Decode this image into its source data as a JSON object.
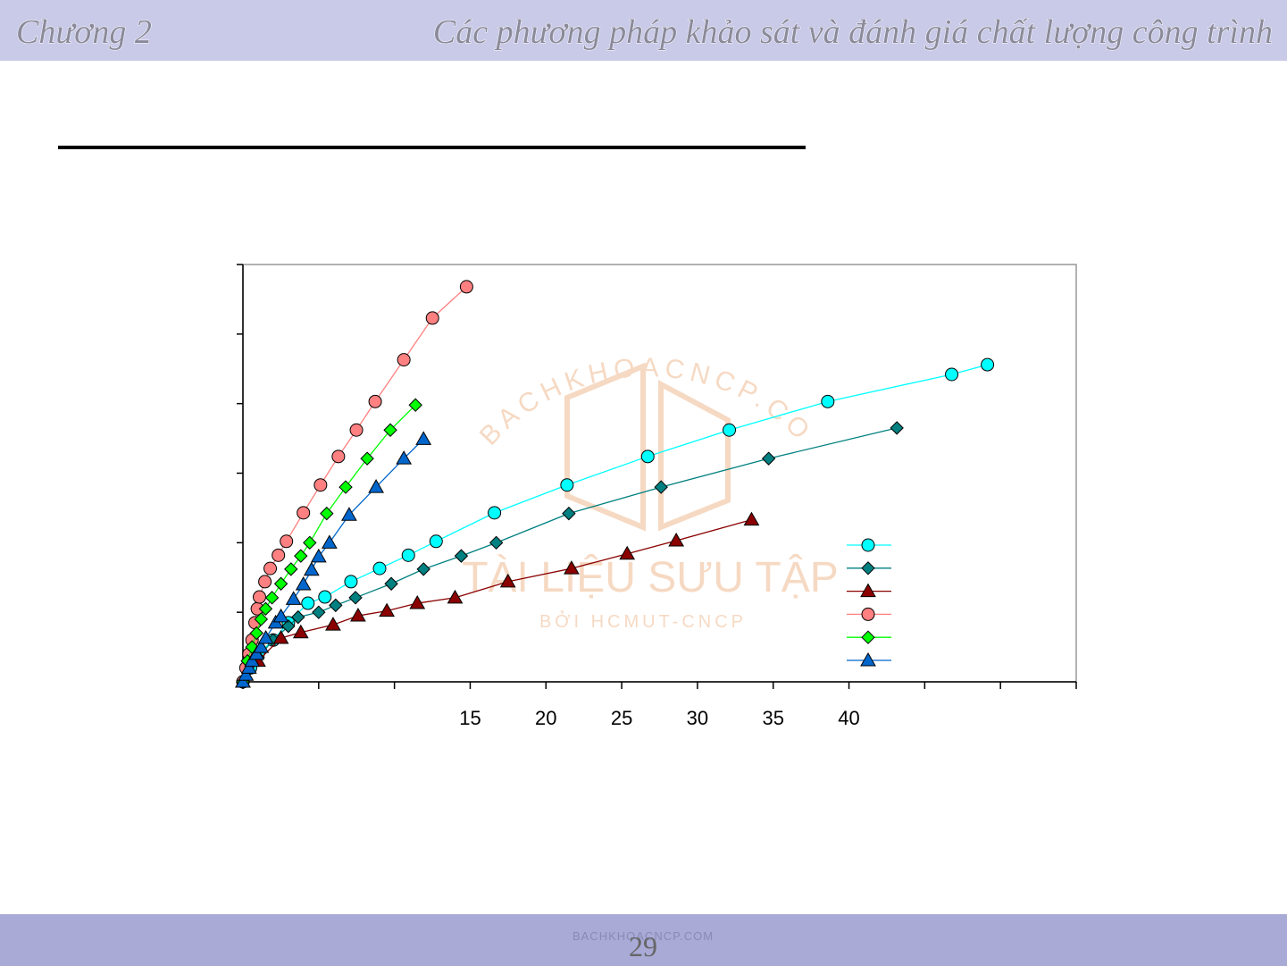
{
  "header": {
    "chapter": "Chương 2",
    "title": "Các phương pháp khảo sát và đánh giá chất lượng công trình"
  },
  "watermark": {
    "arc": "BACHKHOACNCP.COM",
    "line1": "TÀI LIỆU SƯU TẬP",
    "line2": "BỞI HCMUT-CNCP",
    "footer": "BACHKHOACNCP.COM"
  },
  "page_number": "29",
  "chart_data": {
    "type": "line",
    "xlim": [
      0,
      55
    ],
    "ylim": [
      0,
      6
    ],
    "xticks": [
      {
        "value": 0,
        "label": null
      },
      {
        "value": 5,
        "label": null
      },
      {
        "value": 10,
        "label": null
      },
      15,
      20,
      25,
      30,
      35,
      40,
      {
        "value": 45,
        "label": null
      },
      {
        "value": 50,
        "label": null
      },
      {
        "value": 55,
        "label": null
      }
    ],
    "yticks": [
      {
        "value": 0,
        "label": null
      },
      {
        "value": 1,
        "label": null
      },
      {
        "value": 2,
        "label": null
      },
      {
        "value": 3,
        "label": null
      },
      {
        "value": 4,
        "label": null
      },
      {
        "value": 5,
        "label": null
      },
      {
        "value": 6,
        "label": null
      }
    ],
    "series": [
      {
        "color": "#00ffff",
        "marker": "circle",
        "x": [
          0,
          0.5,
          1,
          2,
          3,
          4.29,
          5.41,
          7.13,
          9.02,
          10.92,
          12.75,
          16.6,
          21.39,
          26.72,
          32.1,
          38.6,
          46.78,
          49.14
        ],
        "values": [
          0,
          0.2,
          0.4,
          0.6,
          0.85,
          1.13,
          1.22,
          1.44,
          1.63,
          1.82,
          2.02,
          2.43,
          2.83,
          3.24,
          3.62,
          4.03,
          4.42,
          4.56
        ]
      },
      {
        "color": "#008080",
        "marker": "diamond",
        "x": [
          0,
          1,
          2,
          3,
          3.64,
          5.0,
          6.12,
          7.43,
          9.79,
          11.92,
          14.41,
          16.72,
          21.51,
          27.6,
          34.7,
          43.16
        ],
        "values": [
          0,
          0.35,
          0.6,
          0.8,
          0.93,
          1.0,
          1.1,
          1.21,
          1.41,
          1.62,
          1.81,
          2.0,
          2.42,
          2.8,
          3.21,
          3.65
        ]
      },
      {
        "color": "#8b0000",
        "marker": "triangle",
        "x": [
          0,
          1,
          2.51,
          3.82,
          5.95,
          7.6,
          9.5,
          11.51,
          14.0,
          17.49,
          21.69,
          25.36,
          28.6,
          33.57
        ],
        "values": [
          0,
          0.3,
          0.63,
          0.71,
          0.82,
          0.95,
          1.02,
          1.13,
          1.21,
          1.44,
          1.63,
          1.84,
          2.03,
          2.33
        ]
      },
      {
        "color": "#ff8080",
        "marker": "circle",
        "x": [
          0,
          0.2,
          0.4,
          0.6,
          0.8,
          0.95,
          1.09,
          1.45,
          1.8,
          2.34,
          2.87,
          3.99,
          5.12,
          6.3,
          7.49,
          8.73,
          10.62,
          12.51,
          14.76
        ],
        "values": [
          0,
          0.2,
          0.4,
          0.6,
          0.85,
          1.05,
          1.22,
          1.44,
          1.63,
          1.82,
          2.02,
          2.43,
          2.83,
          3.24,
          3.62,
          4.03,
          4.63,
          5.23,
          5.68
        ]
      },
      {
        "color": "#00ff00",
        "marker": "diamond",
        "x": [
          0,
          0.3,
          0.6,
          0.9,
          1.2,
          1.5,
          1.92,
          2.51,
          3.17,
          3.82,
          4.41,
          5.53,
          6.78,
          8.2,
          9.73,
          11.39
        ],
        "values": [
          0,
          0.3,
          0.5,
          0.7,
          0.9,
          1.05,
          1.21,
          1.41,
          1.62,
          1.81,
          2.0,
          2.42,
          2.8,
          3.21,
          3.62,
          3.98
        ]
      },
      {
        "color": "#0066cc",
        "marker": "triangle",
        "x": [
          0,
          0.2,
          0.4,
          0.6,
          0.9,
          1.2,
          1.51,
          2.16,
          2.51,
          3.34,
          3.99,
          4.53,
          5.0,
          5.71,
          7.01,
          8.79,
          10.62,
          11.92
        ],
        "values": [
          0,
          0.1,
          0.2,
          0.3,
          0.4,
          0.5,
          0.63,
          0.85,
          0.94,
          1.19,
          1.4,
          1.61,
          1.8,
          2.0,
          2.4,
          2.8,
          3.21,
          3.49
        ]
      }
    ]
  }
}
